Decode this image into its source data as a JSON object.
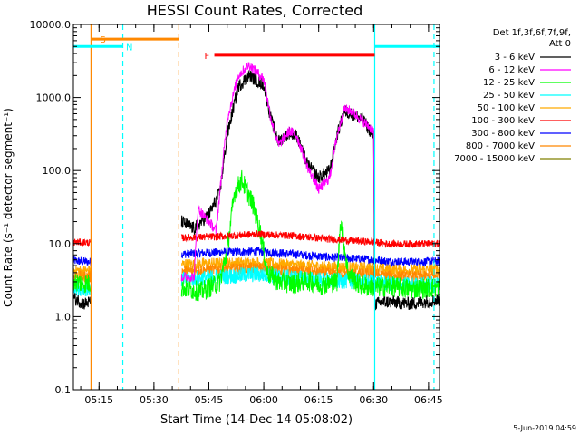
{
  "chart_data": {
    "type": "line",
    "title": "HESSI Count Rates, Corrected",
    "xlabel": "Start Time (14-Dec-14 05:08:02)",
    "ylabel": "Count Rate (s⁻¹ detector segment⁻¹)",
    "y_scale": "log",
    "ylim": [
      0.1,
      10000
    ],
    "y_ticks": [
      "0.1",
      "1.0",
      "10.0",
      "100.0",
      "1000.0",
      "10000.0"
    ],
    "x_range_minutes": [
      0,
      100
    ],
    "x_ticks": [
      {
        "label": "05:15",
        "minute": 7
      },
      {
        "label": "05:30",
        "minute": 22
      },
      {
        "label": "05:45",
        "minute": 37
      },
      {
        "label": "06:00",
        "minute": 52
      },
      {
        "label": "06:15",
        "minute": 67
      },
      {
        "label": "06:30",
        "minute": 82
      },
      {
        "label": "06:45",
        "minute": 97
      }
    ],
    "legend": {
      "header": [
        "Det 1f,3f,6f,7f,9f,",
        "Att 0"
      ],
      "placement": "right"
    },
    "series": [
      {
        "name": "3 - 6 keV",
        "color": "#000000",
        "points": [
          [
            0,
            1.8
          ],
          [
            3,
            1.5
          ],
          [
            4.8,
            1.6
          ],
          [
            29.5,
            20
          ],
          [
            33,
            16
          ],
          [
            37,
            25
          ],
          [
            40,
            50
          ],
          [
            42,
            300
          ],
          [
            45,
            1400
          ],
          [
            48,
            2000
          ],
          [
            52,
            1500
          ],
          [
            54,
            500
          ],
          [
            56,
            250
          ],
          [
            59,
            330
          ],
          [
            61,
            300
          ],
          [
            64,
            120
          ],
          [
            67,
            80
          ],
          [
            70,
            100
          ],
          [
            72,
            300
          ],
          [
            74,
            650
          ],
          [
            76,
            600
          ],
          [
            79,
            500
          ],
          [
            82,
            300
          ],
          [
            82.3,
            1.5
          ],
          [
            86,
            1.6
          ],
          [
            92,
            1.5
          ],
          [
            96,
            1.6
          ],
          [
            100,
            1.7
          ]
        ]
      },
      {
        "name": "6 - 12 keV",
        "color": "#ff00ff",
        "points": [
          [
            29.5,
            3.5
          ],
          [
            33,
            3.5
          ],
          [
            34,
            30
          ],
          [
            37,
            20
          ],
          [
            39,
            15
          ],
          [
            40,
            50
          ],
          [
            42,
            500
          ],
          [
            45,
            2000
          ],
          [
            48,
            2800
          ],
          [
            52,
            1800
          ],
          [
            54,
            500
          ],
          [
            56,
            220
          ],
          [
            59,
            350
          ],
          [
            61,
            300
          ],
          [
            64,
            110
          ],
          [
            67,
            55
          ],
          [
            70,
            80
          ],
          [
            72,
            300
          ],
          [
            74,
            700
          ],
          [
            76,
            650
          ],
          [
            79,
            480
          ],
          [
            82,
            350
          ],
          [
            82.3,
            4
          ]
        ]
      },
      {
        "name": "12 - 25 keV",
        "color": "#00ff00",
        "points": [
          [
            0,
            3
          ],
          [
            4.8,
            2.8
          ],
          [
            29.5,
            2.5
          ],
          [
            35,
            2.2
          ],
          [
            40,
            3
          ],
          [
            42,
            8
          ],
          [
            44,
            50
          ],
          [
            46,
            75
          ],
          [
            49,
            35
          ],
          [
            51,
            15
          ],
          [
            53,
            4
          ],
          [
            56,
            3
          ],
          [
            60,
            2.8
          ],
          [
            64,
            3.1
          ],
          [
            68,
            2.7
          ],
          [
            72,
            3
          ],
          [
            73,
            22
          ],
          [
            75,
            4
          ],
          [
            78,
            2.7
          ],
          [
            82,
            2.5
          ],
          [
            86,
            2.6
          ],
          [
            92,
            2.4
          ],
          [
            100,
            2.5
          ]
        ]
      },
      {
        "name": "25 - 50 keV",
        "color": "#00ffff",
        "points": [
          [
            0,
            2.5
          ],
          [
            4.8,
            2.4
          ],
          [
            29.5,
            3.2
          ],
          [
            40,
            3.5
          ],
          [
            50,
            3.8
          ],
          [
            60,
            3.4
          ],
          [
            70,
            3.1
          ],
          [
            82,
            3.0
          ],
          [
            86,
            2.8
          ],
          [
            92,
            2.7
          ],
          [
            100,
            2.8
          ]
        ]
      },
      {
        "name": "50 - 100 keV",
        "color": "#ffaa00",
        "points": [
          [
            0,
            4.3
          ],
          [
            4.8,
            4.2
          ],
          [
            29.5,
            5.2
          ],
          [
            40,
            5.4
          ],
          [
            50,
            5.5
          ],
          [
            60,
            5.1
          ],
          [
            70,
            4.8
          ],
          [
            82,
            4.6
          ],
          [
            86,
            4.4
          ],
          [
            92,
            4.3
          ],
          [
            100,
            4.4
          ]
        ]
      },
      {
        "name": "100 - 300 keV",
        "color": "#ff0000",
        "points": [
          [
            0,
            10.5
          ],
          [
            4.8,
            10.3
          ],
          [
            29.5,
            12
          ],
          [
            40,
            12.5
          ],
          [
            50,
            13.5
          ],
          [
            60,
            12.8
          ],
          [
            70,
            11.5
          ],
          [
            82,
            10.5
          ],
          [
            86,
            9.9
          ],
          [
            92,
            9.9
          ],
          [
            100,
            10
          ]
        ]
      },
      {
        "name": "300 - 800 keV",
        "color": "#0000ff",
        "points": [
          [
            0,
            5.8
          ],
          [
            4.8,
            5.6
          ],
          [
            29.5,
            7.2
          ],
          [
            40,
            7.6
          ],
          [
            50,
            7.8
          ],
          [
            60,
            7.2
          ],
          [
            70,
            6.5
          ],
          [
            82,
            6.0
          ],
          [
            86,
            5.7
          ],
          [
            92,
            5.6
          ],
          [
            100,
            5.7
          ]
        ]
      },
      {
        "name": "800 - 7000 keV",
        "color": "#ff8800",
        "points": [
          [
            0,
            3.6
          ],
          [
            4.8,
            3.5
          ],
          [
            29.5,
            4.2
          ],
          [
            40,
            4.4
          ],
          [
            50,
            4.6
          ],
          [
            60,
            4.2
          ],
          [
            70,
            3.9
          ],
          [
            82,
            3.8
          ],
          [
            86,
            3.6
          ],
          [
            92,
            3.5
          ],
          [
            100,
            3.6
          ]
        ]
      },
      {
        "name": "7000 - 15000 keV",
        "color": "#808000",
        "points": []
      }
    ],
    "annotations": {
      "flag_bars": [
        {
          "label": "S",
          "color": "#ff8800",
          "x_start": 4.8,
          "x_end": 28.8,
          "level": 6300
        },
        {
          "label": "N",
          "color": "#00ffff",
          "x_start": 0,
          "x_end": 13.5,
          "level": 5000
        },
        {
          "label": "N",
          "color": "#00ffff",
          "x_start": 82.3,
          "x_end": 100,
          "level": 5000
        },
        {
          "label": "F",
          "color": "#ff0000",
          "x_start": 38.5,
          "x_end": 82.3,
          "level": 3800
        }
      ],
      "vlines": [
        {
          "minute": 4.8,
          "color": "#ff8800",
          "dash": false
        },
        {
          "minute": 13.5,
          "color": "#00ffff",
          "dash": true
        },
        {
          "minute": 28.8,
          "color": "#ff8800",
          "dash": true
        },
        {
          "minute": 82.3,
          "color": "#00ffff",
          "dash": false
        },
        {
          "minute": 98.5,
          "color": "#00ffff",
          "dash": true
        }
      ]
    },
    "footer_date": "5-Jun-2019 04:59"
  }
}
